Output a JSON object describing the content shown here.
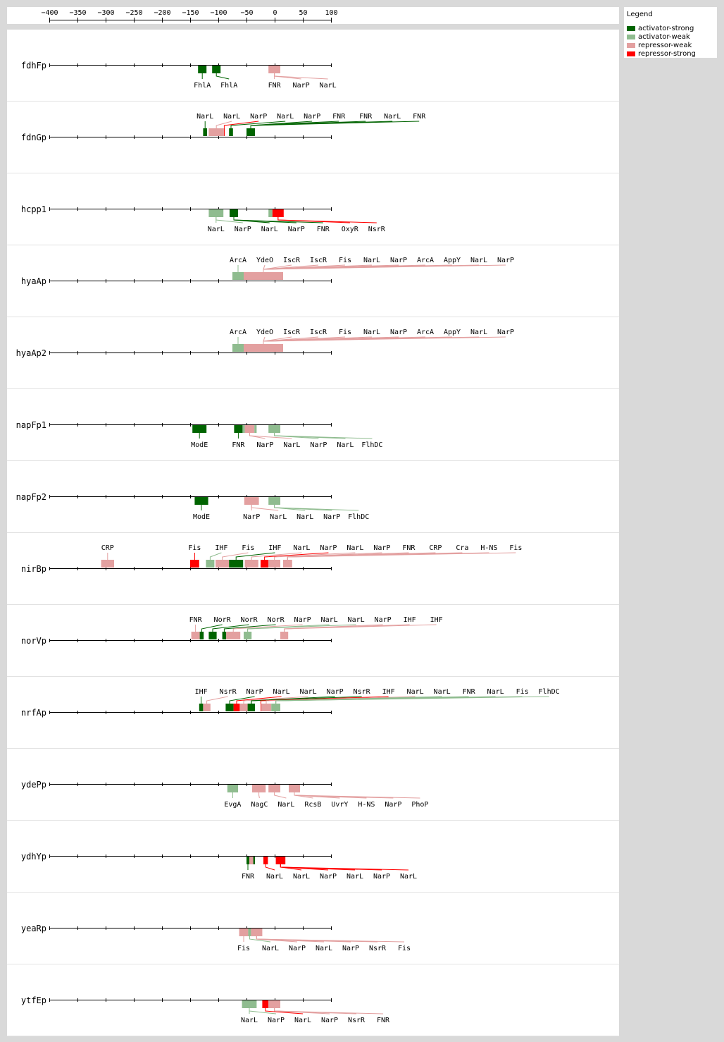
{
  "axis": {
    "ticks": [
      "−400",
      "−350",
      "−300",
      "−250",
      "−200",
      "−150",
      "−100",
      "−50",
      "0",
      "50",
      "100"
    ],
    "tick_values": [
      -400,
      -350,
      -300,
      -250,
      -200,
      -150,
      -100,
      -50,
      0,
      50,
      100
    ]
  },
  "legend": {
    "title": "Legend",
    "items": [
      {
        "label": "activator-strong",
        "color": "#006400"
      },
      {
        "label": "activator-weak",
        "color": "#8fbc8f"
      },
      {
        "label": "repressor-weak",
        "color": "#e3a0a0"
      },
      {
        "label": "repressor-strong",
        "color": "#ff0000"
      }
    ]
  },
  "colors": {
    "activator-strong": "#006400",
    "activator-weak": "#8fbc8f",
    "repressor-weak": "#e3a0a0",
    "repressor-strong": "#ff0000"
  },
  "promoters": [
    {
      "name": "fdhFp",
      "side": "below",
      "sites": [
        {
          "s": -136,
          "e": -121,
          "t": "activator-strong",
          "l": "FhlA"
        },
        {
          "s": -111,
          "e": -96,
          "t": "activator-strong",
          "l": "FhlA"
        },
        {
          "s": -11,
          "e": 10,
          "t": "repressor-weak",
          "l": "FNR"
        },
        {
          "s": -11,
          "e": 10,
          "t": "repressor-weak",
          "l": "NarP"
        },
        {
          "s": -11,
          "e": 10,
          "t": "repressor-weak",
          "l": "NarL"
        }
      ]
    },
    {
      "name": "fdnGp",
      "side": "above",
      "sites": [
        {
          "s": -127,
          "e": -120,
          "t": "activator-strong",
          "l": "NarL"
        },
        {
          "s": -117,
          "e": -90,
          "t": "repressor-weak",
          "l": "NarL"
        },
        {
          "s": -90,
          "e": -89,
          "t": "repressor-strong",
          "l": "NarP"
        },
        {
          "s": -81,
          "e": -74,
          "t": "activator-strong",
          "l": "NarL"
        },
        {
          "s": -50,
          "e": -35,
          "t": "activator-strong",
          "l": "NarP"
        },
        {
          "s": -50,
          "e": -35,
          "t": "activator-strong",
          "l": "FNR"
        },
        {
          "s": -50,
          "e": -35,
          "t": "activator-strong",
          "l": "FNR"
        },
        {
          "s": -50,
          "e": -35,
          "t": "activator-strong",
          "l": "NarL"
        },
        {
          "s": -50,
          "e": -35,
          "t": "activator-strong",
          "l": "FNR"
        }
      ]
    },
    {
      "name": "hcpp1",
      "side": "below",
      "sites": [
        {
          "s": -117,
          "e": -91,
          "t": "activator-weak",
          "l": "NarL"
        },
        {
          "s": -117,
          "e": -91,
          "t": "activator-weak",
          "l": "NarP"
        },
        {
          "s": -80,
          "e": -65,
          "t": "activator-strong",
          "l": "NarL"
        },
        {
          "s": -80,
          "e": -65,
          "t": "activator-strong",
          "l": "NarP"
        },
        {
          "s": -80,
          "e": -65,
          "t": "activator-strong",
          "l": "FNR"
        },
        {
          "s": -11,
          "e": -4,
          "t": "activator-weak",
          "l": ""
        },
        {
          "s": -4,
          "e": 16,
          "t": "repressor-strong",
          "l": "OxyR"
        },
        {
          "s": -4,
          "e": 16,
          "t": "repressor-strong",
          "l": "NsrR"
        }
      ]
    },
    {
      "name": "hyaAp",
      "side": "above",
      "sites": [
        {
          "s": -75,
          "e": -55,
          "t": "activator-weak",
          "l": "ArcA"
        },
        {
          "s": -55,
          "e": 15,
          "t": "repressor-weak",
          "l": "YdeO"
        },
        {
          "s": -55,
          "e": 15,
          "t": "repressor-weak",
          "l": "IscR"
        },
        {
          "s": -55,
          "e": 15,
          "t": "repressor-weak",
          "l": "IscR"
        },
        {
          "s": -55,
          "e": 15,
          "t": "repressor-weak",
          "l": "Fis"
        },
        {
          "s": -55,
          "e": 15,
          "t": "repressor-weak",
          "l": "NarL"
        },
        {
          "s": -55,
          "e": 15,
          "t": "repressor-weak",
          "l": "NarP"
        },
        {
          "s": -55,
          "e": 15,
          "t": "repressor-weak",
          "l": "ArcA"
        },
        {
          "s": -55,
          "e": 15,
          "t": "repressor-weak",
          "l": "AppY"
        },
        {
          "s": -55,
          "e": 15,
          "t": "repressor-weak",
          "l": "NarL"
        },
        {
          "s": -55,
          "e": 15,
          "t": "repressor-weak",
          "l": "NarP"
        }
      ]
    },
    {
      "name": "hyaAp2",
      "side": "above",
      "sites": [
        {
          "s": -75,
          "e": -55,
          "t": "activator-weak",
          "l": "ArcA"
        },
        {
          "s": -55,
          "e": 15,
          "t": "repressor-weak",
          "l": "YdeO"
        },
        {
          "s": -55,
          "e": 15,
          "t": "repressor-weak",
          "l": "IscR"
        },
        {
          "s": -55,
          "e": 15,
          "t": "repressor-weak",
          "l": "IscR"
        },
        {
          "s": -55,
          "e": 15,
          "t": "repressor-weak",
          "l": "Fis"
        },
        {
          "s": -55,
          "e": 15,
          "t": "repressor-weak",
          "l": "NarL"
        },
        {
          "s": -55,
          "e": 15,
          "t": "repressor-weak",
          "l": "NarP"
        },
        {
          "s": -55,
          "e": 15,
          "t": "repressor-weak",
          "l": "ArcA"
        },
        {
          "s": -55,
          "e": 15,
          "t": "repressor-weak",
          "l": "AppY"
        },
        {
          "s": -55,
          "e": 15,
          "t": "repressor-weak",
          "l": "NarL"
        },
        {
          "s": -55,
          "e": 15,
          "t": "repressor-weak",
          "l": "NarP"
        }
      ]
    },
    {
      "name": "napFp1",
      "side": "below",
      "sites": [
        {
          "s": -146,
          "e": -121,
          "t": "activator-strong",
          "l": "ModE"
        },
        {
          "s": -72,
          "e": -57,
          "t": "activator-strong",
          "l": "FNR"
        },
        {
          "s": -57,
          "e": -53,
          "t": "activator-weak",
          "l": ""
        },
        {
          "s": -53,
          "e": -36,
          "t": "repressor-weak",
          "l": "NarP"
        },
        {
          "s": -53,
          "e": -36,
          "t": "repressor-weak",
          "l": "NarL"
        },
        {
          "s": -36,
          "e": -32,
          "t": "activator-weak",
          "l": ""
        },
        {
          "s": -11,
          "e": 10,
          "t": "activator-weak",
          "l": "NarP"
        },
        {
          "s": -11,
          "e": 10,
          "t": "activator-weak",
          "l": "NarL"
        },
        {
          "s": -11,
          "e": 10,
          "t": "activator-weak",
          "l": "FlhDC"
        }
      ]
    },
    {
      "name": "napFp2",
      "side": "below",
      "sites": [
        {
          "s": -142,
          "e": -118,
          "t": "activator-strong",
          "l": "ModE"
        },
        {
          "s": -54,
          "e": -28,
          "t": "repressor-weak",
          "l": "NarP"
        },
        {
          "s": -54,
          "e": -28,
          "t": "repressor-weak",
          "l": "NarL"
        },
        {
          "s": -11,
          "e": 10,
          "t": "activator-weak",
          "l": "NarL"
        },
        {
          "s": -11,
          "e": 10,
          "t": "activator-weak",
          "l": "NarP"
        },
        {
          "s": -11,
          "e": 10,
          "t": "activator-weak",
          "l": "FlhDC"
        }
      ]
    },
    {
      "name": "nirBp",
      "side": "above",
      "sites": [
        {
          "s": -308,
          "e": -285,
          "t": "repressor-weak",
          "l": "CRP"
        },
        {
          "s": -150,
          "e": -134,
          "t": "repressor-strong",
          "l": "Fis"
        },
        {
          "s": -122,
          "e": -107,
          "t": "activator-weak",
          "l": "IHF"
        },
        {
          "s": -105,
          "e": -81,
          "t": "repressor-weak",
          "l": "Fis"
        },
        {
          "s": -81,
          "e": -56,
          "t": "activator-strong",
          "l": "IHF"
        },
        {
          "s": -53,
          "e": -29,
          "t": "repressor-weak",
          "l": "NarL"
        },
        {
          "s": -25,
          "e": -11,
          "t": "repressor-strong",
          "l": "NarP"
        },
        {
          "s": -11,
          "e": 10,
          "t": "repressor-weak",
          "l": "NarL"
        },
        {
          "s": 15,
          "e": 31,
          "t": "repressor-weak",
          "l": "NarP"
        },
        {
          "s": 15,
          "e": 31,
          "t": "repressor-weak",
          "l": "FNR"
        },
        {
          "s": 15,
          "e": 31,
          "t": "repressor-weak",
          "l": "CRP"
        },
        {
          "s": 15,
          "e": 31,
          "t": "repressor-weak",
          "l": "Cra"
        },
        {
          "s": 15,
          "e": 31,
          "t": "repressor-weak",
          "l": "H-NS"
        },
        {
          "s": 15,
          "e": 31,
          "t": "repressor-weak",
          "l": "Fis"
        }
      ]
    },
    {
      "name": "norVp",
      "side": "above",
      "sites": [
        {
          "s": -148,
          "e": -133,
          "t": "repressor-weak",
          "l": "FNR"
        },
        {
          "s": -133,
          "e": -126,
          "t": "activator-strong",
          "l": "NorR"
        },
        {
          "s": -117,
          "e": -103,
          "t": "activator-strong",
          "l": "NorR"
        },
        {
          "s": -93,
          "e": -86,
          "t": "activator-strong",
          "l": "NorR"
        },
        {
          "s": -86,
          "e": -61,
          "t": "repressor-weak",
          "l": "NarP"
        },
        {
          "s": -55,
          "e": -41,
          "t": "activator-weak",
          "l": "NarL"
        },
        {
          "s": -55,
          "e": -41,
          "t": "activator-weak",
          "l": "NarL"
        },
        {
          "s": 10,
          "e": 24,
          "t": "repressor-weak",
          "l": "NarP"
        },
        {
          "s": 10,
          "e": 24,
          "t": "repressor-weak",
          "l": "IHF"
        },
        {
          "s": 10,
          "e": 24,
          "t": "repressor-weak",
          "l": "IHF"
        }
      ]
    },
    {
      "name": "nrfAp",
      "side": "above",
      "sites": [
        {
          "s": -134,
          "e": -127,
          "t": "activator-strong",
          "l": "IHF"
        },
        {
          "s": -127,
          "e": -114,
          "t": "repressor-weak",
          "l": "NsrR"
        },
        {
          "s": -87,
          "e": -73,
          "t": "activator-strong",
          "l": "NarP"
        },
        {
          "s": -73,
          "e": -62,
          "t": "repressor-strong",
          "l": "NarL"
        },
        {
          "s": -62,
          "e": -48,
          "t": "repressor-weak",
          "l": "NarL"
        },
        {
          "s": -48,
          "e": -35,
          "t": "activator-strong",
          "l": "NarP"
        },
        {
          "s": -48,
          "e": -35,
          "t": "activator-strong",
          "l": "NsrR"
        },
        {
          "s": -25,
          "e": -24,
          "t": "repressor-strong",
          "l": "IHF"
        },
        {
          "s": -24,
          "e": -6,
          "t": "repressor-weak",
          "l": "NarL"
        },
        {
          "s": -6,
          "e": 10,
          "t": "activator-weak",
          "l": "NarL"
        },
        {
          "s": -6,
          "e": 10,
          "t": "activator-weak",
          "l": "FNR"
        },
        {
          "s": -6,
          "e": 10,
          "t": "activator-weak",
          "l": "NarL"
        },
        {
          "s": -6,
          "e": 10,
          "t": "activator-weak",
          "l": "Fis"
        },
        {
          "s": -6,
          "e": 10,
          "t": "activator-weak",
          "l": "FlhDC"
        }
      ]
    },
    {
      "name": "ydePp",
      "side": "below",
      "sites": [
        {
          "s": -84,
          "e": -65,
          "t": "activator-weak",
          "l": "EvgA"
        },
        {
          "s": -40,
          "e": -16,
          "t": "repressor-weak",
          "l": "NagC"
        },
        {
          "s": -11,
          "e": 10,
          "t": "repressor-weak",
          "l": "NarL"
        },
        {
          "s": 25,
          "e": 45,
          "t": "repressor-weak",
          "l": "RcsB"
        },
        {
          "s": 25,
          "e": 45,
          "t": "repressor-weak",
          "l": "UvrY"
        },
        {
          "s": 25,
          "e": 45,
          "t": "repressor-weak",
          "l": "H-NS"
        },
        {
          "s": 25,
          "e": 45,
          "t": "repressor-weak",
          "l": "NarP"
        },
        {
          "s": 25,
          "e": 45,
          "t": "repressor-weak",
          "l": "PhoP"
        }
      ]
    },
    {
      "name": "ydhYp",
      "side": "below",
      "sites": [
        {
          "s": -50,
          "e": -45,
          "t": "activator-strong",
          "l": "FNR"
        },
        {
          "s": -45,
          "e": -38,
          "t": "repressor-weak",
          "l": ""
        },
        {
          "s": -38,
          "e": -35,
          "t": "activator-strong",
          "l": ""
        },
        {
          "s": -20,
          "e": -12,
          "t": "repressor-strong",
          "l": "NarL"
        },
        {
          "s": 2,
          "e": 19,
          "t": "repressor-strong",
          "l": "NarL"
        },
        {
          "s": 2,
          "e": 19,
          "t": "repressor-strong",
          "l": "NarP"
        },
        {
          "s": 2,
          "e": 19,
          "t": "repressor-strong",
          "l": "NarL"
        },
        {
          "s": 2,
          "e": 19,
          "t": "repressor-strong",
          "l": "NarP"
        },
        {
          "s": 2,
          "e": 19,
          "t": "repressor-strong",
          "l": "NarL"
        }
      ]
    },
    {
      "name": "yeaRp",
      "side": "below",
      "sites": [
        {
          "s": -63,
          "e": -47,
          "t": "repressor-weak",
          "l": "Fis"
        },
        {
          "s": -47,
          "e": -42,
          "t": "activator-weak",
          "l": "NarL"
        },
        {
          "s": -42,
          "e": -22,
          "t": "repressor-weak",
          "l": "NarP"
        },
        {
          "s": -42,
          "e": -22,
          "t": "repressor-weak",
          "l": "NarL"
        },
        {
          "s": -42,
          "e": -22,
          "t": "repressor-weak",
          "l": "NarP"
        },
        {
          "s": -42,
          "e": -22,
          "t": "repressor-weak",
          "l": "NsrR"
        },
        {
          "s": -42,
          "e": -22,
          "t": "repressor-weak",
          "l": "Fis"
        }
      ]
    },
    {
      "name": "ytfEp",
      "side": "below",
      "sites": [
        {
          "s": -58,
          "e": -32,
          "t": "activator-weak",
          "l": "NarL"
        },
        {
          "s": -58,
          "e": -32,
          "t": "activator-weak",
          "l": "NarP"
        },
        {
          "s": -22,
          "e": -11,
          "t": "repressor-strong",
          "l": "NarL"
        },
        {
          "s": -11,
          "e": 10,
          "t": "repressor-weak",
          "l": "NarP"
        },
        {
          "s": -11,
          "e": 10,
          "t": "repressor-weak",
          "l": "NsrR"
        },
        {
          "s": -11,
          "e": 10,
          "t": "repressor-weak",
          "l": "FNR"
        }
      ]
    }
  ]
}
